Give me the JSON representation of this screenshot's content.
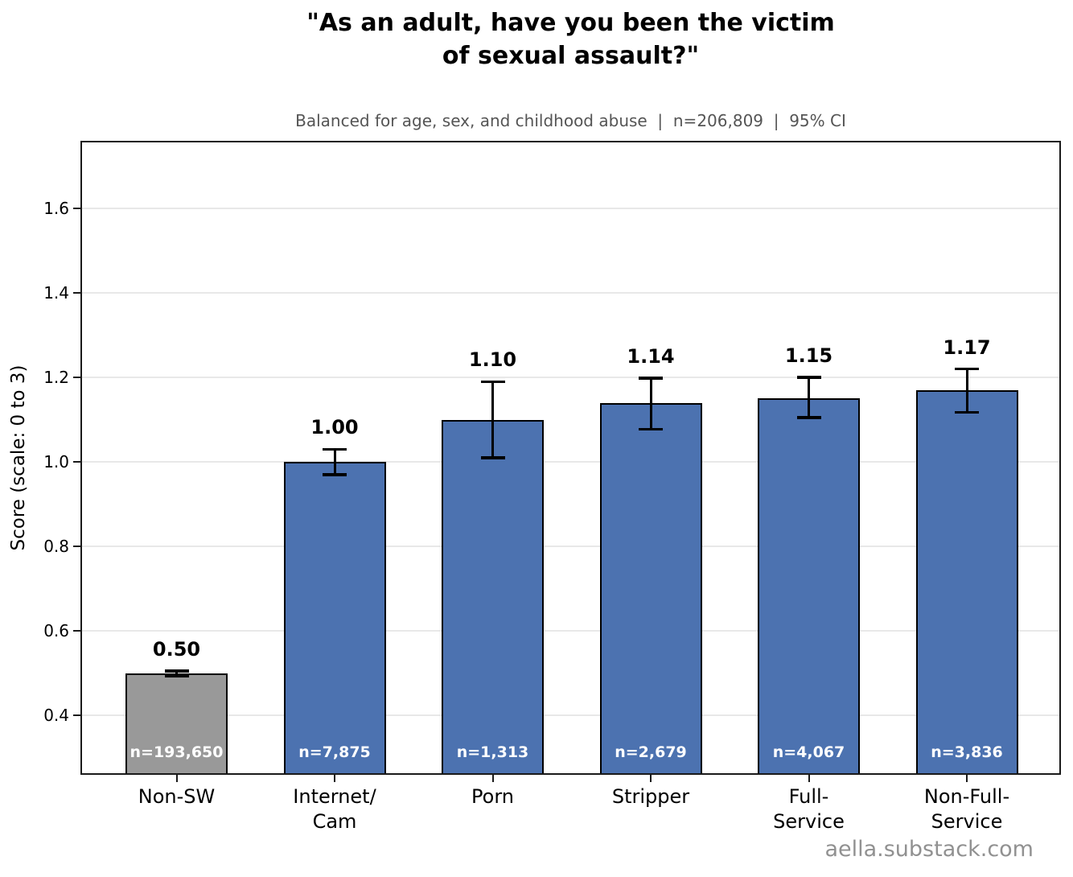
{
  "chart_data": {
    "type": "bar",
    "title": "\"As an adult, have you been the victim\nof sexual assault?\"",
    "subtitle": "Balanced for age, sex, and childhood abuse  |  n=206,809  |  95% CI",
    "ylabel": "Score (scale: 0 to 3)",
    "categories": [
      "Non-SW",
      "Internet/\nCam",
      "Porn",
      "Stripper",
      "Full-\nService",
      "Non-Full-\nService"
    ],
    "values": [
      0.5,
      1.0,
      1.1,
      1.14,
      1.15,
      1.17
    ],
    "value_labels": [
      "0.50",
      "1.00",
      "1.10",
      "1.14",
      "1.15",
      "1.17"
    ],
    "ci_low": [
      0.494,
      0.97,
      1.01,
      1.078,
      1.105,
      1.118
    ],
    "ci_high": [
      0.506,
      1.03,
      1.19,
      1.198,
      1.2,
      1.22
    ],
    "n_labels": [
      "n=193,650",
      "n=7,875",
      "n=1,313",
      "n=2,679",
      "n=4,067",
      "n=3,836"
    ],
    "bar_colors": [
      "#999999",
      "#4C72B0",
      "#4C72B0",
      "#4C72B0",
      "#4C72B0",
      "#4C72B0"
    ],
    "bar_edge_color": "#000000",
    "error_color": "#000000",
    "grid": true,
    "gridline_color": "#e8e8e8",
    "ylim": [
      0.26,
      1.76
    ],
    "yticks": [
      0.4,
      0.6,
      0.8,
      1.0,
      1.2,
      1.4,
      1.6
    ],
    "ytick_labels": [
      "0.4",
      "0.6",
      "0.8",
      "1.0",
      "1.2",
      "1.4",
      "1.6"
    ],
    "legend": "none",
    "watermark": "aella.substack.com"
  }
}
